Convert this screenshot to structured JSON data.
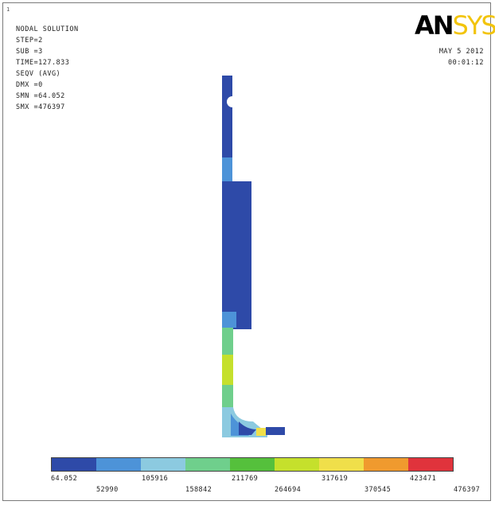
{
  "corner_mark": "1",
  "info": {
    "title": "NODAL SOLUTION",
    "step": "STEP=2",
    "sub": "SUB =3",
    "time": "TIME=127.833",
    "seqv": "SEQV     (AVG)",
    "dmx": "DMX =0",
    "smn": "SMN =64.052",
    "smx": "SMX =476397"
  },
  "logo": {
    "an": "AN",
    "sys": "SYS"
  },
  "datetime": {
    "date": "MAY  5 2012",
    "time": "00:01:12"
  },
  "legend": {
    "colors": [
      "#2e4aa8",
      "#4d93d8",
      "#8ccae0",
      "#6fcf8c",
      "#55c03c",
      "#c5e02c",
      "#f0df4a",
      "#f09a2e",
      "#e0333c"
    ],
    "top_labels": [
      "64.052",
      "105916",
      "211769",
      "317619",
      "423471"
    ],
    "bottom_labels": [
      "52990",
      "158842",
      "264694",
      "370545",
      "476397"
    ]
  },
  "model_colors": {
    "dark_blue": "#2e4aa8",
    "light_blue": "#4d93d8",
    "cyan": "#8ccae0",
    "green": "#6fcf8c",
    "yellow_green": "#c5e02c",
    "yellow": "#f0df4a"
  }
}
